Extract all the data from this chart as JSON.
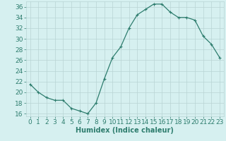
{
  "x": [
    0,
    1,
    2,
    3,
    4,
    5,
    6,
    7,
    8,
    9,
    10,
    11,
    12,
    13,
    14,
    15,
    16,
    17,
    18,
    19,
    20,
    21,
    22,
    23
  ],
  "y": [
    21.5,
    20.0,
    19.0,
    18.5,
    18.5,
    17.0,
    16.5,
    16.0,
    18.0,
    22.5,
    26.5,
    28.5,
    32.0,
    34.5,
    35.5,
    36.5,
    36.5,
    35.0,
    34.0,
    34.0,
    33.5,
    30.5,
    29.0,
    26.5
  ],
  "xlabel": "Humidex (Indice chaleur)",
  "line_color": "#2e7d6e",
  "marker": "+",
  "marker_size": 3,
  "line_width": 0.9,
  "bg_color": "#d6f0f0",
  "grid_color": "#b8d4d4",
  "xlim": [
    -0.5,
    23.5
  ],
  "ylim": [
    15.5,
    37
  ],
  "yticks": [
    16,
    18,
    20,
    22,
    24,
    26,
    28,
    30,
    32,
    34,
    36
  ],
  "xtick_labels": [
    "0",
    "1",
    "2",
    "3",
    "4",
    "5",
    "6",
    "7",
    "8",
    "9",
    "10",
    "11",
    "12",
    "13",
    "14",
    "15",
    "16",
    "17",
    "18",
    "19",
    "20",
    "21",
    "22",
    "23"
  ],
  "xlabel_fontsize": 7,
  "tick_fontsize": 6.5
}
